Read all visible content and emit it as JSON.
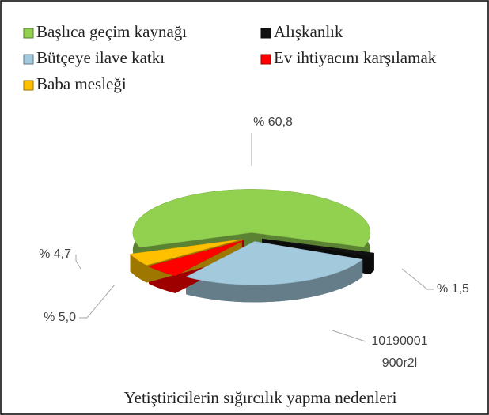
{
  "chart_data": {
    "type": "pie",
    "three_d": true,
    "title": "Yetiştiricilerin sığırcılık yapma nedenleri",
    "categories": [
      "Başlıca geçim kaynağı",
      "Alışkanlık",
      "Bütçeye ilave katkı",
      "Ev ihtiyacını karşılamak",
      "Baba mesleği"
    ],
    "values": [
      60.8,
      1.5,
      28.0,
      5.0,
      4.7
    ],
    "value_labels": [
      "% 60,8",
      "% 1,5",
      null,
      "% 5,0",
      "% 4,7"
    ],
    "colors": [
      "#92d050",
      "#111111",
      "#a3c9dc",
      "#ff0000",
      "#ffc000"
    ],
    "annotations": [
      "10190001",
      "900r2l"
    ],
    "legend": "top"
  }
}
